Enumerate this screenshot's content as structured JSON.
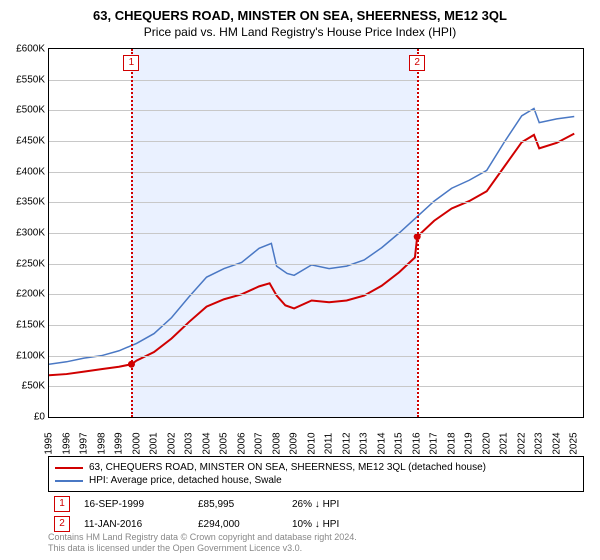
{
  "title": "63, CHEQUERS ROAD, MINSTER ON SEA, SHEERNESS, ME12 3QL",
  "subtitle": "Price paid vs. HM Land Registry's House Price Index (HPI)",
  "chart": {
    "type": "line",
    "xlim": [
      1995,
      2025.5
    ],
    "ylim": [
      0,
      600000
    ],
    "ytick_step": 50000,
    "yticks": [
      "£0",
      "£50K",
      "£100K",
      "£150K",
      "£200K",
      "£250K",
      "£300K",
      "£350K",
      "£400K",
      "£450K",
      "£500K",
      "£550K",
      "£600K"
    ],
    "xticks": [
      "1995",
      "1996",
      "1997",
      "1998",
      "1999",
      "2000",
      "2001",
      "2002",
      "2003",
      "2004",
      "2005",
      "2006",
      "2007",
      "2008",
      "2009",
      "2010",
      "2011",
      "2012",
      "2013",
      "2014",
      "2015",
      "2016",
      "2017",
      "2018",
      "2019",
      "2020",
      "2021",
      "2022",
      "2023",
      "2024",
      "2025"
    ],
    "grid_color": "#c8c8c8",
    "border_color": "#000000",
    "background_color": "#ffffff",
    "shade_color": "#eaf1ff",
    "shade_ranges": [
      [
        1999.71,
        2016.03
      ]
    ],
    "marker_line_color": "#d00000",
    "markers": [
      {
        "x": 1999.71,
        "label": "1"
      },
      {
        "x": 2016.03,
        "label": "2"
      }
    ],
    "series": [
      {
        "name": "price_paid",
        "label": "63, CHEQUERS ROAD, MINSTER ON SEA, SHEERNESS, ME12 3QL (detached house)",
        "color": "#d00000",
        "line_width": 2,
        "points": [
          [
            1995,
            68000
          ],
          [
            1996,
            70000
          ],
          [
            1997,
            74000
          ],
          [
            1998,
            78000
          ],
          [
            1999,
            82000
          ],
          [
            1999.71,
            85995
          ],
          [
            2000,
            92000
          ],
          [
            2001,
            106000
          ],
          [
            2002,
            128000
          ],
          [
            2003,
            155000
          ],
          [
            2004,
            180000
          ],
          [
            2005,
            192000
          ],
          [
            2006,
            200000
          ],
          [
            2007,
            213000
          ],
          [
            2007.6,
            218000
          ],
          [
            2008,
            198000
          ],
          [
            2008.5,
            182000
          ],
          [
            2009,
            177000
          ],
          [
            2010,
            190000
          ],
          [
            2011,
            187000
          ],
          [
            2012,
            190000
          ],
          [
            2013,
            198000
          ],
          [
            2014,
            214000
          ],
          [
            2015,
            236000
          ],
          [
            2015.9,
            260000
          ],
          [
            2016.03,
            294000
          ],
          [
            2017,
            320000
          ],
          [
            2018,
            340000
          ],
          [
            2019,
            352000
          ],
          [
            2020,
            368000
          ],
          [
            2021,
            408000
          ],
          [
            2022,
            448000
          ],
          [
            2022.7,
            460000
          ],
          [
            2023,
            438000
          ],
          [
            2024,
            447000
          ],
          [
            2025,
            462000
          ]
        ],
        "sale_dots": [
          [
            1999.71,
            85995
          ],
          [
            2016.03,
            294000
          ]
        ]
      },
      {
        "name": "hpi",
        "label": "HPI: Average price, detached house, Swale",
        "color": "#4a78c4",
        "line_width": 1.5,
        "points": [
          [
            1995,
            86000
          ],
          [
            1996,
            90000
          ],
          [
            1997,
            96000
          ],
          [
            1998,
            100000
          ],
          [
            1999,
            108000
          ],
          [
            2000,
            120000
          ],
          [
            2001,
            136000
          ],
          [
            2002,
            162000
          ],
          [
            2003,
            196000
          ],
          [
            2004,
            228000
          ],
          [
            2005,
            242000
          ],
          [
            2006,
            252000
          ],
          [
            2007,
            275000
          ],
          [
            2007.7,
            283000
          ],
          [
            2008,
            246000
          ],
          [
            2008.6,
            234000
          ],
          [
            2009,
            231000
          ],
          [
            2010,
            248000
          ],
          [
            2011,
            242000
          ],
          [
            2012,
            246000
          ],
          [
            2013,
            256000
          ],
          [
            2014,
            276000
          ],
          [
            2015,
            300000
          ],
          [
            2016,
            326000
          ],
          [
            2017,
            352000
          ],
          [
            2018,
            373000
          ],
          [
            2019,
            386000
          ],
          [
            2020,
            402000
          ],
          [
            2021,
            448000
          ],
          [
            2022,
            491000
          ],
          [
            2022.7,
            503000
          ],
          [
            2023,
            480000
          ],
          [
            2024,
            486000
          ],
          [
            2025,
            490000
          ]
        ]
      }
    ]
  },
  "legend": {
    "border_color": "#000000"
  },
  "sales": [
    {
      "n": "1",
      "date": "16-SEP-1999",
      "price": "£85,995",
      "delta": "26% ↓ HPI"
    },
    {
      "n": "2",
      "date": "11-JAN-2016",
      "price": "£294,000",
      "delta": "10% ↓ HPI"
    }
  ],
  "footer_line1": "Contains HM Land Registry data © Crown copyright and database right 2024.",
  "footer_line2": "This data is licensed under the Open Government Licence v3.0."
}
